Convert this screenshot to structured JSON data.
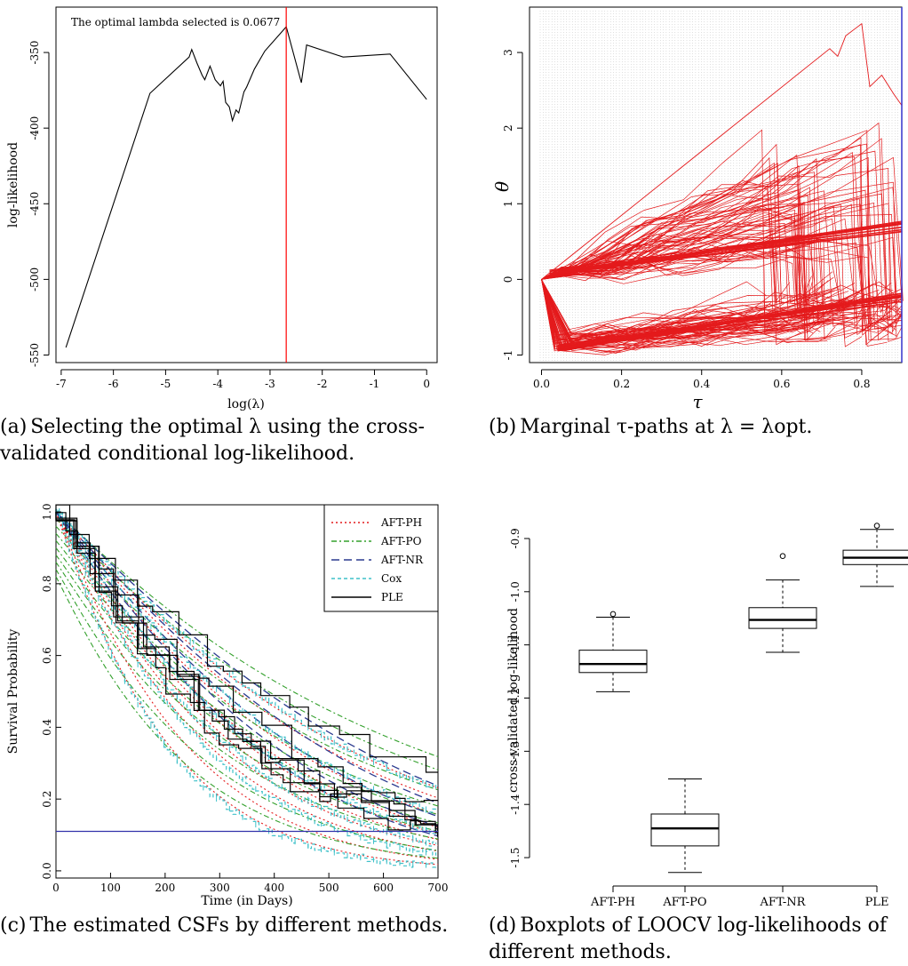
{
  "chart_data": [
    {
      "id": "a",
      "type": "line",
      "caption_prefix": "(a)",
      "caption": "Selecting the optimal λ using the cross-validated conditional log-likelihood.",
      "annotation": "The optimal lambda selected is 0.0677",
      "xlabel": "log(λ)",
      "ylabel": "log-likelihood",
      "xlim": [
        -7.1,
        0.2
      ],
      "ylim": [
        -555,
        -320
      ],
      "xticks": [
        -7,
        -6,
        -5,
        -4,
        -3,
        -2,
        -1,
        0
      ],
      "yticks": [
        -550,
        -500,
        -450,
        -400,
        -350
      ],
      "vline": {
        "x": -2.69,
        "color": "#ff0000"
      },
      "series": [
        {
          "values": [
            [
              -6.91,
              -545
            ],
            [
              -5.3,
              -377
            ],
            [
              -4.55,
              -353
            ],
            [
              -4.5,
              -348
            ],
            [
              -4.4,
              -357
            ],
            [
              -4.3,
              -365
            ],
            [
              -4.25,
              -368
            ],
            [
              -4.15,
              -359
            ],
            [
              -4.05,
              -368
            ],
            [
              -3.95,
              -372
            ],
            [
              -3.9,
              -369
            ],
            [
              -3.85,
              -383
            ],
            [
              -3.78,
              -386
            ],
            [
              -3.72,
              -395
            ],
            [
              -3.65,
              -388
            ],
            [
              -3.6,
              -390
            ],
            [
              -3.5,
              -376
            ],
            [
              -3.45,
              -373
            ],
            [
              -3.3,
              -361
            ],
            [
              -3.1,
              -349
            ],
            [
              -2.69,
              -333
            ],
            [
              -2.4,
              -370
            ],
            [
              -2.3,
              -345
            ],
            [
              -1.6,
              -353
            ],
            [
              -0.7,
              -351
            ],
            [
              0.0,
              -381
            ]
          ]
        }
      ]
    },
    {
      "id": "b",
      "type": "line",
      "caption_prefix": "(b)",
      "caption": "Marginal τ-paths at λ = λopt.",
      "xlabel": "τ",
      "ylabel": "θ",
      "xlim": [
        -0.03,
        0.9
      ],
      "ylim": [
        -1.1,
        3.6
      ],
      "xticks": [
        0.0,
        0.2,
        0.4,
        0.6,
        0.8
      ],
      "yticks": [
        -1,
        0,
        1,
        2,
        3
      ],
      "line_color": "#e41a1c",
      "vline": {
        "x": 0.9,
        "color": "#3333cc"
      }
    },
    {
      "id": "c",
      "type": "line",
      "caption_prefix": "(c)",
      "caption": "The estimated CSFs by different methods.",
      "xlabel": "Time (in Days)",
      "ylabel": "Survival Probability",
      "xlim": [
        0,
        700
      ],
      "ylim": [
        -0.02,
        1.02
      ],
      "xticks": [
        0,
        100,
        200,
        300,
        400,
        500,
        600,
        700
      ],
      "yticks": [
        0.0,
        0.2,
        0.4,
        0.6,
        0.8,
        1.0
      ],
      "hline": {
        "y": 0.11,
        "color": "#3333aa"
      },
      "legend": {
        "position": "top-right",
        "entries": [
          {
            "label": "AFT-PH",
            "color": "#e41a1c",
            "dash": "2,3"
          },
          {
            "label": "AFT-PO",
            "color": "#33a02c",
            "dash": "6,3,2,3"
          },
          {
            "label": "AFT-NR",
            "color": "#2b3a8f",
            "dash": "9,5"
          },
          {
            "label": "Cox",
            "color": "#3fc1c9",
            "dash": "4,3"
          },
          {
            "label": "PLE",
            "color": "#000000",
            "dash": ""
          }
        ]
      }
    },
    {
      "id": "d",
      "type": "box",
      "caption_prefix": "(d)",
      "caption": "Boxplots of LOOCV log-likelihoods of different methods.",
      "ylabel": "cross-validated log-likelihood",
      "categories": [
        "AFT-PH",
        "AFT-PO",
        "AFT-NR",
        "PLE"
      ],
      "ylim": [
        -1.53,
        -0.88
      ],
      "yticks": [
        -1.5,
        -1.4,
        -1.3,
        -1.2,
        -1.1,
        -1.0,
        -0.9
      ],
      "boxes": [
        {
          "min": -1.188,
          "q1": -1.152,
          "median": -1.136,
          "q3": -1.11,
          "max": -1.048,
          "outliers": [
            -1.042
          ]
        },
        {
          "min": -1.528,
          "q1": -1.478,
          "median": -1.445,
          "q3": -1.418,
          "max": -1.352,
          "outliers": []
        },
        {
          "min": -1.114,
          "q1": -1.069,
          "median": -1.053,
          "q3": -1.03,
          "max": -0.978,
          "outliers": [
            -0.933
          ]
        },
        {
          "min": -0.99,
          "q1": -0.949,
          "median": -0.936,
          "q3": -0.922,
          "max": -0.883,
          "outliers": [
            -0.876
          ]
        }
      ]
    }
  ]
}
